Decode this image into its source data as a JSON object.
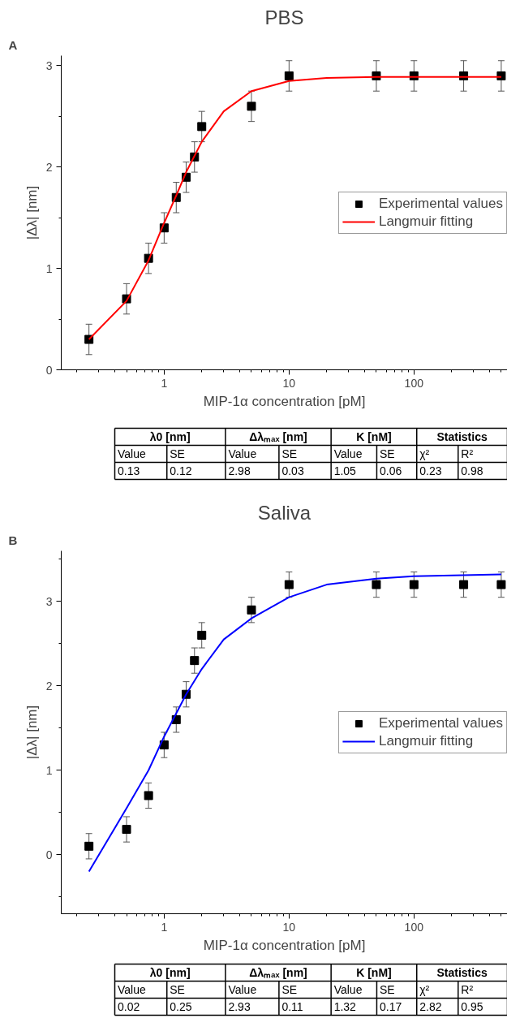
{
  "chart_data": [
    {
      "type": "scatter",
      "title": "PBS",
      "xlabel": "MIP-1α concentration [pM]",
      "ylabel": "|Δλ| [nm]",
      "log": "x",
      "xlim": [
        0.15,
        560
      ],
      "xticks": [
        1,
        10,
        100
      ],
      "ylim": [
        0,
        3.1
      ],
      "yticks": [
        0,
        1,
        2,
        3
      ],
      "grid": false,
      "legend": "right",
      "x": [
        0.25,
        0.5,
        0.75,
        1,
        1.25,
        1.5,
        1.75,
        2,
        5,
        10,
        50,
        100,
        250,
        500
      ],
      "series": [
        {
          "name": "Experimental values",
          "marker": "square",
          "color": "#000000",
          "values": [
            0.3,
            0.7,
            1.1,
            1.4,
            1.7,
            1.9,
            2.1,
            2.4,
            2.6,
            2.9,
            2.9,
            2.9,
            2.9,
            2.9
          ],
          "errors": [
            0.15,
            0.15,
            0.15,
            0.15,
            0.15,
            0.15,
            0.15,
            0.15,
            0.15,
            0.15,
            0.15,
            0.15,
            0.15,
            0.15
          ]
        },
        {
          "name": "Langmuir fitting",
          "type": "line",
          "marker": "none",
          "color": "#ff0000",
          "line_style": "solid",
          "x": [
            0.25,
            0.5,
            0.75,
            1,
            1.25,
            1.5,
            2,
            3,
            5,
            10,
            20,
            50,
            100,
            500
          ],
          "values": [
            0.3,
            0.68,
            1.08,
            1.45,
            1.72,
            1.95,
            2.25,
            2.55,
            2.75,
            2.85,
            2.88,
            2.89,
            2.89,
            2.89
          ]
        }
      ],
      "annotations": [
        "A",
        "λ0 [nm]",
        "Δλₘₐₓ [nm]",
        "K [nM]",
        "Statistics",
        "Value",
        "SE",
        "Value",
        "SE",
        "Value",
        "SE",
        "χ²",
        "R²",
        "0.13",
        "0.12",
        "2.98",
        "0.03",
        "1.05",
        "0.06",
        "0.23",
        "0.98"
      ]
    },
    {
      "type": "scatter",
      "title": "Saliva",
      "xlabel": "MIP-1α concentration [pM]",
      "ylabel": "|Δλ| [nm]",
      "log": "x",
      "xlim": [
        0.15,
        560
      ],
      "xticks": [
        1,
        10,
        100
      ],
      "ylim": [
        -0.7,
        3.6
      ],
      "yticks": [
        0,
        1,
        2,
        3
      ],
      "grid": false,
      "legend": "right",
      "x": [
        0.25,
        0.5,
        0.75,
        1,
        1.25,
        1.5,
        1.75,
        2,
        5,
        10,
        50,
        100,
        250,
        500
      ],
      "series": [
        {
          "name": "Experimental values",
          "marker": "square",
          "color": "#000000",
          "values": [
            0.1,
            0.3,
            0.7,
            1.3,
            1.6,
            1.9,
            2.3,
            2.6,
            2.9,
            3.2,
            3.2,
            3.2,
            3.2,
            3.2
          ],
          "errors": [
            0.15,
            0.15,
            0.15,
            0.15,
            0.15,
            0.15,
            0.15,
            0.15,
            0.15,
            0.15,
            0.15,
            0.15,
            0.15,
            0.15
          ]
        },
        {
          "name": "Langmuir fitting",
          "type": "line",
          "marker": "none",
          "color": "#0000ff",
          "line_style": "solid",
          "x": [
            0.25,
            0.5,
            0.75,
            1,
            1.5,
            2,
            3,
            5,
            10,
            20,
            50,
            100,
            500
          ],
          "values": [
            -0.2,
            0.55,
            1.0,
            1.4,
            1.9,
            2.2,
            2.55,
            2.8,
            3.05,
            3.2,
            3.27,
            3.3,
            3.32
          ]
        }
      ],
      "annotations": [
        "B",
        "λ0 [nm]",
        "Δλₘₐₓ [nm]",
        "K [nM]",
        "Statistics",
        "Value",
        "SE",
        "Value",
        "SE",
        "Value",
        "SE",
        "χ²",
        "R²",
        "0.02",
        "0.25",
        "2.93",
        "0.11",
        "1.32",
        "0.17",
        "2.82",
        "0.95"
      ]
    }
  ]
}
